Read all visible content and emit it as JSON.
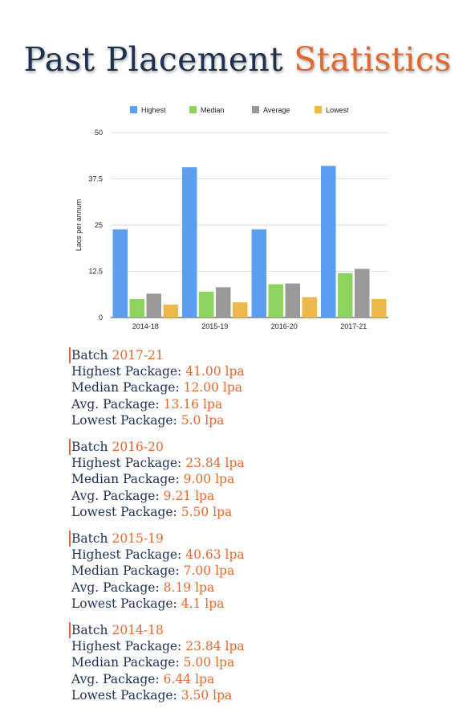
{
  "page": {
    "title_part1": "Past Placement",
    "title_part2": "Statistics"
  },
  "colors": {
    "title_dark": "#1f3150",
    "accent": "#e1692e",
    "highest": "#5b9ff0",
    "median": "#8dd35f",
    "average": "#999999",
    "lowest": "#edb94a"
  },
  "chart_data": {
    "type": "bar",
    "categories": [
      "2014-18",
      "2015-19",
      "2016-20",
      "2017-21"
    ],
    "series": [
      {
        "name": "Highest",
        "color": "#5b9ff0",
        "values": [
          23.84,
          40.63,
          23.84,
          41.0
        ]
      },
      {
        "name": "Median",
        "color": "#8dd35f",
        "values": [
          5.0,
          7.0,
          9.0,
          12.0
        ]
      },
      {
        "name": "Average",
        "color": "#999999",
        "values": [
          6.44,
          8.19,
          9.21,
          13.16
        ]
      },
      {
        "name": "Lowest",
        "color": "#edb94a",
        "values": [
          3.5,
          4.1,
          5.5,
          5.0
        ]
      }
    ],
    "ylabel": "Lacs per annum",
    "ylim": [
      0,
      50
    ],
    "yticks": [
      "0",
      "12.5",
      "25",
      "37.5",
      "50"
    ],
    "ytick_values": [
      0,
      12.5,
      25,
      37.5,
      50
    ],
    "grid": true,
    "legend_position": "top"
  },
  "batch_labels": {
    "batch": "Batch",
    "highest": "Highest Package:",
    "median": "Median Package:",
    "average": "Avg. Package:",
    "lowest": "Lowest Package:"
  },
  "batches": [
    {
      "year": "2017-21",
      "highest": "41.00 lpa",
      "median": "12.00 lpa",
      "average": "13.16 lpa",
      "lowest": "5.0 lpa"
    },
    {
      "year": "2016-20",
      "highest": "23.84 lpa",
      "median": "9.00 lpa",
      "average": "9.21 lpa",
      "lowest": "5.50 lpa"
    },
    {
      "year": "2015-19",
      "highest": "40.63 lpa",
      "median": "7.00 lpa",
      "average": "8.19 lpa",
      "lowest": "4.1 lpa"
    },
    {
      "year": "2014-18",
      "highest": "23.84 lpa",
      "median": "5.00 lpa",
      "average": "6.44 lpa",
      "lowest": "3.50 lpa"
    }
  ]
}
